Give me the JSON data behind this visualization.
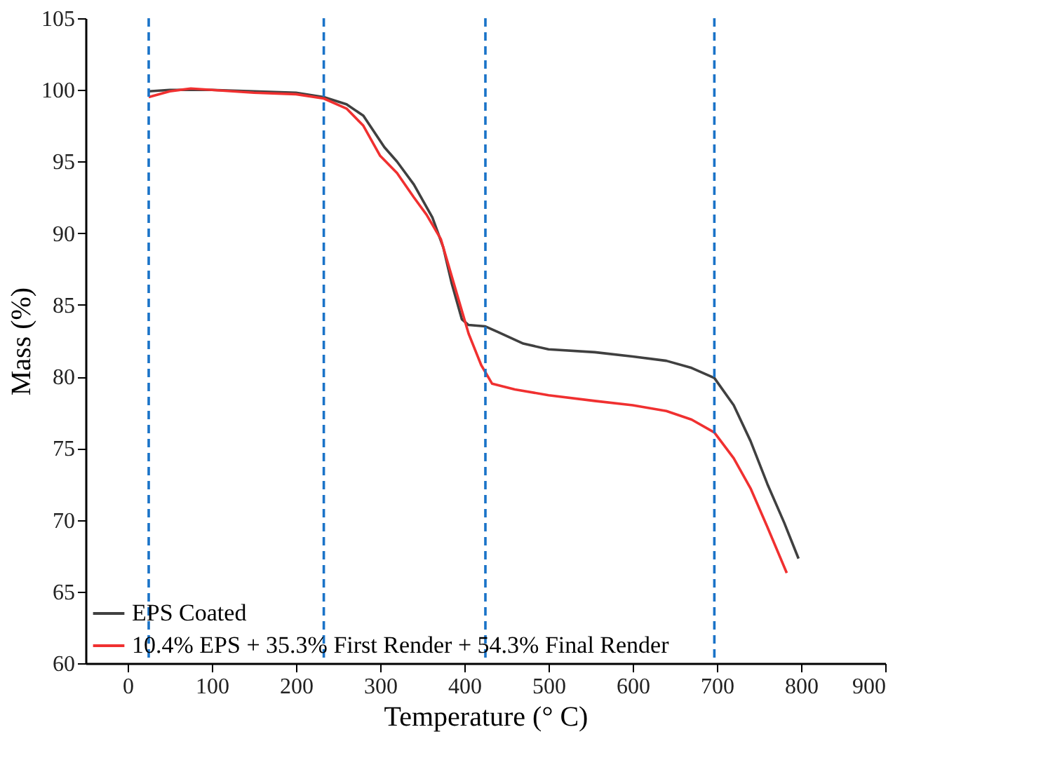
{
  "chart_data": {
    "type": "line",
    "xlabel": "Temperature (° C)",
    "ylabel": "Mass (%)",
    "xlim": [
      -50,
      900
    ],
    "xticks": [
      0,
      100,
      200,
      300,
      400,
      500,
      600,
      700,
      800,
      900
    ],
    "ylim": [
      60,
      105
    ],
    "yticks": [
      60,
      65,
      70,
      75,
      80,
      85,
      90,
      95,
      100,
      105
    ],
    "grid": false,
    "legend": "bottom left",
    "line_style": "solid",
    "marker": "none",
    "series": [
      {
        "name": "EPS Coated",
        "color": "#404040",
        "x": [
          25,
          50,
          100,
          150,
          200,
          233,
          260,
          280,
          305,
          320,
          340,
          362,
          375,
          385,
          397,
          405,
          425,
          440,
          470,
          500,
          555,
          600,
          640,
          670,
          697,
          720,
          740,
          760,
          780,
          797
        ],
        "values": [
          99.9,
          100.0,
          100.0,
          99.9,
          99.8,
          99.5,
          99.0,
          98.2,
          96.0,
          95.0,
          93.4,
          91.1,
          89.0,
          86.5,
          84.0,
          83.6,
          83.5,
          83.1,
          82.3,
          81.9,
          81.7,
          81.4,
          81.1,
          80.6,
          79.9,
          78.0,
          75.5,
          72.5,
          69.8,
          67.3
        ]
      },
      {
        "name": "10.4% EPS + 35.3% First Render + 54.3% Final Render",
        "color": "#f03030",
        "x": [
          25,
          50,
          75,
          100,
          150,
          200,
          233,
          260,
          280,
          300,
          320,
          340,
          355,
          372,
          390,
          405,
          420,
          433,
          460,
          500,
          555,
          600,
          640,
          670,
          697,
          720,
          740,
          760,
          783
        ],
        "values": [
          99.5,
          99.9,
          100.1,
          100.0,
          99.8,
          99.7,
          99.4,
          98.7,
          97.5,
          95.4,
          94.2,
          92.5,
          91.3,
          89.6,
          86.0,
          83.0,
          80.8,
          79.5,
          79.1,
          78.7,
          78.3,
          78.0,
          77.6,
          77.0,
          76.1,
          74.3,
          72.2,
          69.5,
          66.3
        ]
      }
    ],
    "ref_lines": [
      {
        "axis": "x",
        "value": 25,
        "color": "#1a73c8",
        "line_style": "dashed"
      },
      {
        "axis": "x",
        "value": 233,
        "color": "#1a73c8",
        "line_style": "dashed"
      },
      {
        "axis": "x",
        "value": 425,
        "color": "#1a73c8",
        "line_style": "dashed"
      },
      {
        "axis": "x",
        "value": 697,
        "color": "#1a73c8",
        "line_style": "dashed"
      }
    ]
  }
}
